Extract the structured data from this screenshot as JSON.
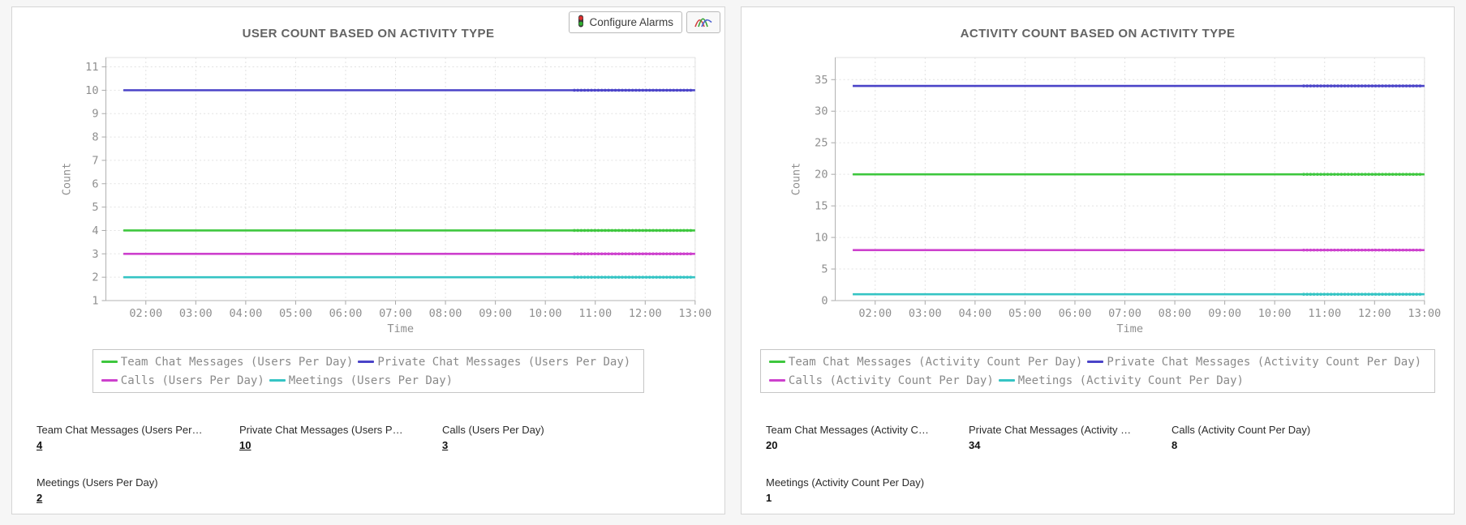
{
  "panels": [
    {
      "toolbar": {
        "configure_alarms_label": "Configure Alarms",
        "traffic_light_icon": "traffic-light-icon",
        "chart_icon": "line-chart-icon"
      },
      "values_underlined": true,
      "stats": [
        {
          "label": "Team Chat Messages (Users Per Day)",
          "value": "4"
        },
        {
          "label": "Private Chat Messages (Users Per Day)",
          "value": "10"
        },
        {
          "label": "Calls (Users Per Day)",
          "value": "3"
        },
        {
          "label": "Meetings (Users Per Day)",
          "value": "2"
        }
      ]
    },
    {
      "values_underlined": false,
      "stats": [
        {
          "label": "Team Chat Messages (Activity Count Per Day)",
          "value": "20"
        },
        {
          "label": "Private Chat Messages (Activity Count Per Day)",
          "value": "34"
        },
        {
          "label": "Calls (Activity Count Per Day)",
          "value": "8"
        },
        {
          "label": "Meetings (Activity Count Per Day)",
          "value": "1"
        }
      ]
    }
  ],
  "chart_data": [
    {
      "type": "line",
      "title": "USER COUNT BASED ON ACTIVITY TYPE",
      "xlabel": "Time",
      "ylabel": "Count",
      "x_ticks": [
        "02:00",
        "03:00",
        "04:00",
        "05:00",
        "06:00",
        "07:00",
        "08:00",
        "09:00",
        "10:00",
        "11:00",
        "12:00",
        "13:00"
      ],
      "y_ticks": [
        1,
        2,
        3,
        4,
        5,
        6,
        7,
        8,
        9,
        10,
        11
      ],
      "ylim": [
        1,
        11.4
      ],
      "grid": true,
      "legend_position": "bottom",
      "series": [
        {
          "name": "Team Chat Messages (Users Per Day)",
          "color": "#3ec73e",
          "value": 4
        },
        {
          "name": "Private Chat Messages (Users Per Day)",
          "color": "#4a43c8",
          "value": 10
        },
        {
          "name": "Calls (Users Per Day)",
          "color": "#cd41cd",
          "value": 3
        },
        {
          "name": "Meetings (Users Per Day)",
          "color": "#35c4c4",
          "value": 2
        }
      ]
    },
    {
      "type": "line",
      "title": "ACTIVITY COUNT BASED ON ACTIVITY TYPE",
      "xlabel": "Time",
      "ylabel": "Count",
      "x_ticks": [
        "02:00",
        "03:00",
        "04:00",
        "05:00",
        "06:00",
        "07:00",
        "08:00",
        "09:00",
        "10:00",
        "11:00",
        "12:00",
        "13:00"
      ],
      "y_ticks": [
        0,
        5,
        10,
        15,
        20,
        25,
        30,
        35
      ],
      "ylim": [
        0,
        38.5
      ],
      "grid": true,
      "legend_position": "bottom",
      "series": [
        {
          "name": "Team Chat Messages (Activity Count Per Day)",
          "color": "#3ec73e",
          "value": 20
        },
        {
          "name": "Private Chat Messages (Activity Count Per Day)",
          "color": "#4a43c8",
          "value": 34
        },
        {
          "name": "Calls (Activity Count Per Day)",
          "color": "#cd41cd",
          "value": 8
        },
        {
          "name": "Meetings (Activity Count Per Day)",
          "color": "#35c4c4",
          "value": 1
        }
      ]
    }
  ],
  "colors": {
    "page_bg": "#f6f6f6",
    "panel_border": "#d5d5d5",
    "title_text": "#636363",
    "tick_text": "#8f8f8f",
    "grid": "#e2e2e2",
    "axis": "#b3b3b3"
  }
}
